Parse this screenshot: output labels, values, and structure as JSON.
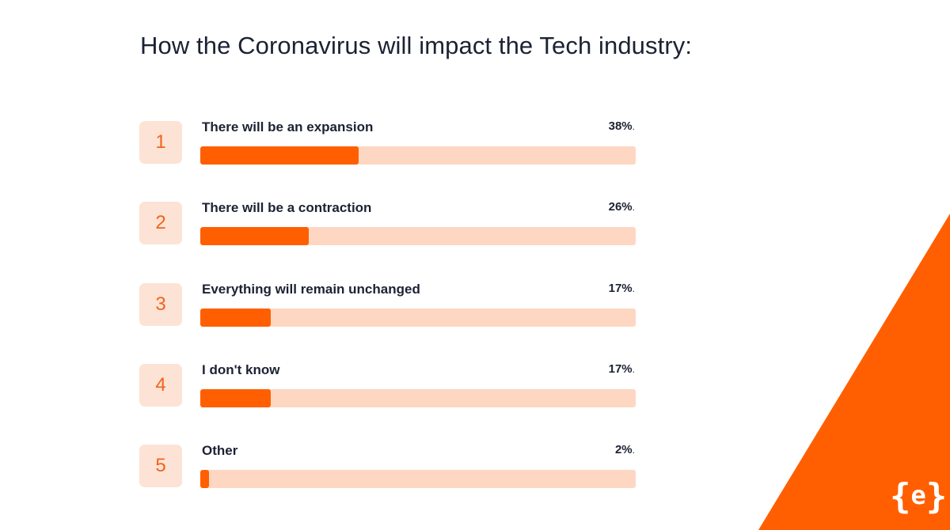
{
  "colors": {
    "accent": "#ff5f00",
    "track": "#fdd7c2",
    "badge_bg": "#fde3d5",
    "text": "#1c2233"
  },
  "chart_data": {
    "type": "bar",
    "title": "How the Coronavirus will impact the Tech industry:",
    "orientation": "horizontal",
    "xlim": [
      0,
      100
    ],
    "categories": [
      "There will be an expansion",
      "There will be a contraction",
      "Everything will remain unchanged",
      "I don't know",
      "Other"
    ],
    "values": [
      38,
      26,
      17,
      17,
      2
    ],
    "ranks": [
      "1",
      "2",
      "3",
      "4",
      "5"
    ],
    "value_labels": [
      "38%",
      "26%",
      "17%",
      "17%",
      "2%"
    ],
    "grid": false,
    "legend": "none"
  },
  "logo": {
    "icon": "curly-brace-e-logo",
    "left": "{",
    "mid": "e",
    "right": "}"
  }
}
